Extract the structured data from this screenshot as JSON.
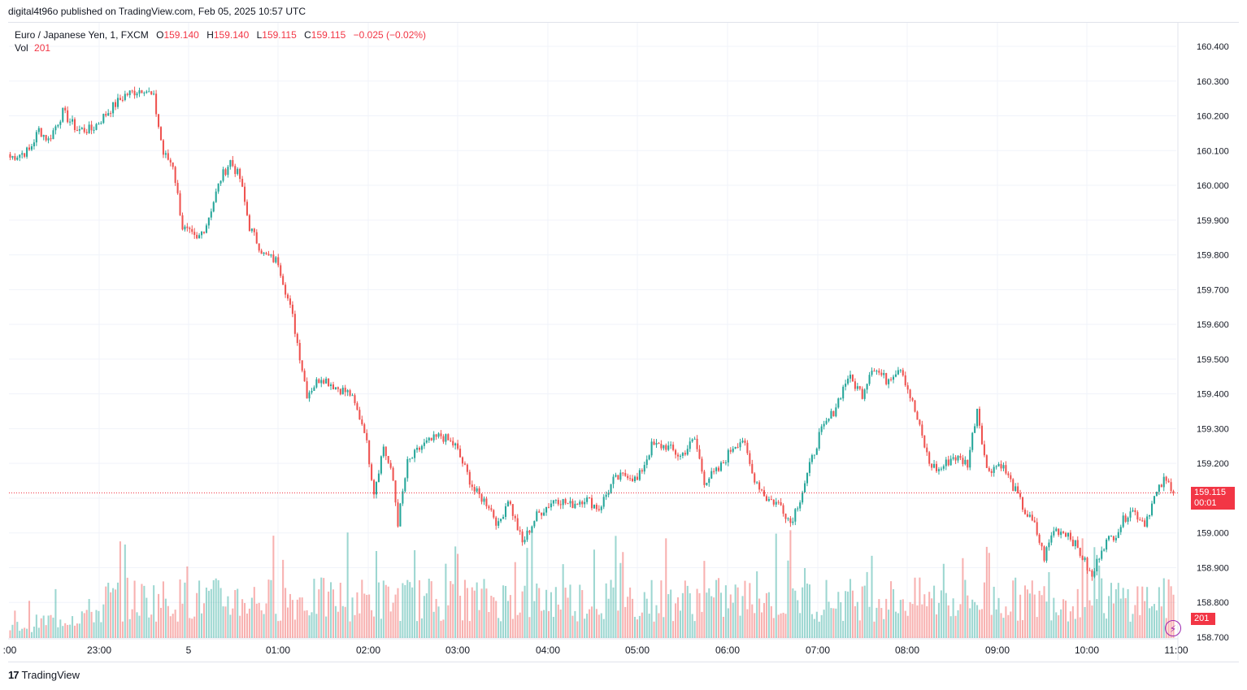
{
  "header": {
    "publisher_line": "digital4t96o published on TradingView.com, Feb 05, 2025 10:57 UTC"
  },
  "legend": {
    "symbol": "Euro / Japanese Yen, 1, FXCM",
    "open_label": "O",
    "open": "159.140",
    "high_label": "H",
    "high": "159.140",
    "low_label": "L",
    "low": "159.115",
    "close_label": "C",
    "close": "159.115",
    "change": "−0.025 (−0.02%)",
    "vol_label": "Vol",
    "vol": "201"
  },
  "tags": {
    "last_price": "159.115",
    "countdown": "00:01",
    "volume": "201"
  },
  "footer": {
    "brand": "TradingView",
    "mark": "17"
  },
  "colors": {
    "up": "#26a69a",
    "down": "#ef5350",
    "tag": "#f23645",
    "grid": "#f0f3fa"
  },
  "chart_data": {
    "type": "candlestick",
    "y_ticks": [
      "160.400",
      "160.300",
      "160.200",
      "160.100",
      "160.000",
      "159.900",
      "159.800",
      "159.700",
      "159.600",
      "159.500",
      "159.400",
      "159.300",
      "159.200",
      "159.100",
      "159.000",
      "158.900",
      "158.800",
      "158.700"
    ],
    "ylim": [
      158.7,
      160.43
    ],
    "x_ticks": [
      ":00",
      "23:00",
      "5",
      "01:00",
      "02:00",
      "03:00",
      "04:00",
      "05:00",
      "06:00",
      "07:00",
      "08:00",
      "09:00",
      "10:00",
      "11:00"
    ],
    "last_price": 159.115,
    "anchors": [
      [
        0,
        160.08
      ],
      [
        8,
        160.1
      ],
      [
        12,
        160.16
      ],
      [
        16,
        160.13
      ],
      [
        22,
        160.21
      ],
      [
        28,
        160.16
      ],
      [
        34,
        160.16
      ],
      [
        42,
        160.22
      ],
      [
        48,
        160.26
      ],
      [
        56,
        160.28
      ],
      [
        60,
        160.25
      ],
      [
        64,
        160.09
      ],
      [
        68,
        160.06
      ],
      [
        72,
        159.88
      ],
      [
        78,
        159.84
      ],
      [
        82,
        159.89
      ],
      [
        88,
        160.02
      ],
      [
        92,
        160.07
      ],
      [
        96,
        160.02
      ],
      [
        100,
        159.88
      ],
      [
        106,
        159.8
      ],
      [
        112,
        159.78
      ],
      [
        118,
        159.62
      ],
      [
        124,
        159.4
      ],
      [
        130,
        159.45
      ],
      [
        136,
        159.42
      ],
      [
        142,
        159.4
      ],
      [
        148,
        159.3
      ],
      [
        152,
        159.12
      ],
      [
        156,
        159.25
      ],
      [
        160,
        159.15
      ],
      [
        162,
        159.03
      ],
      [
        166,
        159.2
      ],
      [
        172,
        159.25
      ],
      [
        180,
        159.28
      ],
      [
        186,
        159.25
      ],
      [
        194,
        159.12
      ],
      [
        200,
        159.08
      ],
      [
        204,
        159.02
      ],
      [
        208,
        159.1
      ],
      [
        214,
        158.97
      ],
      [
        220,
        159.05
      ],
      [
        228,
        159.1
      ],
      [
        234,
        159.08
      ],
      [
        240,
        159.1
      ],
      [
        246,
        159.07
      ],
      [
        252,
        159.15
      ],
      [
        258,
        159.17
      ],
      [
        262,
        159.15
      ],
      [
        268,
        159.25
      ],
      [
        274,
        159.25
      ],
      [
        280,
        159.22
      ],
      [
        286,
        159.27
      ],
      [
        290,
        159.15
      ],
      [
        296,
        159.18
      ],
      [
        302,
        159.25
      ],
      [
        306,
        159.27
      ],
      [
        310,
        159.17
      ],
      [
        316,
        159.1
      ],
      [
        322,
        159.08
      ],
      [
        326,
        159.03
      ],
      [
        330,
        159.1
      ],
      [
        338,
        159.28
      ],
      [
        344,
        159.35
      ],
      [
        350,
        159.45
      ],
      [
        356,
        159.4
      ],
      [
        360,
        159.48
      ],
      [
        366,
        159.44
      ],
      [
        372,
        159.48
      ],
      [
        378,
        159.35
      ],
      [
        384,
        159.2
      ],
      [
        388,
        159.18
      ],
      [
        394,
        159.22
      ],
      [
        400,
        159.2
      ],
      [
        404,
        159.36
      ],
      [
        408,
        159.18
      ],
      [
        414,
        159.2
      ],
      [
        420,
        159.12
      ],
      [
        424,
        159.06
      ],
      [
        428,
        159.02
      ],
      [
        432,
        158.93
      ],
      [
        436,
        159.01
      ],
      [
        442,
        159.0
      ],
      [
        448,
        158.93
      ],
      [
        452,
        158.87
      ],
      [
        456,
        158.96
      ],
      [
        462,
        159.0
      ],
      [
        468,
        159.07
      ],
      [
        474,
        159.03
      ],
      [
        478,
        159.1
      ],
      [
        482,
        159.15
      ],
      [
        486,
        159.13
      ]
    ]
  }
}
